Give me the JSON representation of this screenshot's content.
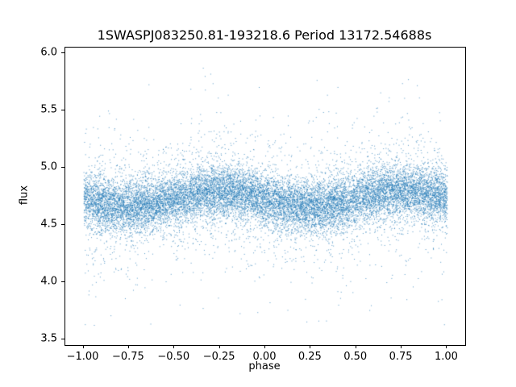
{
  "chart_data": {
    "type": "scatter",
    "title": "1SWASPJ083250.81-193218.6 Period 13172.54688s",
    "xlabel": "phase",
    "ylabel": "flux",
    "xlim": [
      -1.1,
      1.1
    ],
    "ylim": [
      3.45,
      6.05
    ],
    "xticks": [
      -1.0,
      -0.75,
      -0.5,
      -0.25,
      0.0,
      0.25,
      0.5,
      0.75,
      1.0
    ],
    "xtick_labels": [
      "−1.00",
      "−0.75",
      "−0.50",
      "−0.25",
      "0.00",
      "0.25",
      "0.50",
      "0.75",
      "1.00"
    ],
    "yticks": [
      3.5,
      4.0,
      4.5,
      5.0,
      5.5,
      6.0
    ],
    "ytick_labels": [
      "3.5",
      "4.0",
      "4.5",
      "5.0",
      "5.5",
      "6.0"
    ],
    "grid": false,
    "legend": "none",
    "marker_color": "#1f77b4",
    "marker_opacity": 0.75,
    "marker_size_px": 1,
    "series_model": {
      "description": "phase-folded light curve scatter, dense band of ~20000 tiny points",
      "n_points": 17000,
      "phase_range": [
        -1.0,
        1.0
      ],
      "flux_baseline": 4.73,
      "modulation_amplitude": 0.07,
      "modulation_period_phase": 1.0,
      "modulation_peak_phase": 0.75,
      "noise_components": [
        {
          "fraction": 0.8,
          "sigma": 0.11
        },
        {
          "fraction": 0.14,
          "sigma": 0.24
        },
        {
          "fraction": 0.06,
          "sigma": 0.42
        }
      ],
      "flux_min": 3.55,
      "flux_max": 5.95,
      "seed": 42
    }
  }
}
